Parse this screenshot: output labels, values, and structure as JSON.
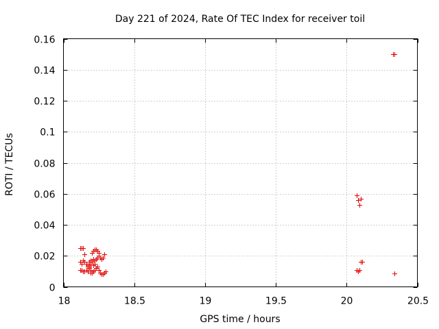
{
  "chart_data": {
    "type": "scatter",
    "title": "Day 221 of 2024, Rate Of TEC Index for receiver toil",
    "xlabel": "GPS time / hours",
    "ylabel": "ROTI / TECUs",
    "xlim": [
      18,
      20.5
    ],
    "ylim": [
      0,
      0.16
    ],
    "x_ticks": [
      18,
      18.5,
      19,
      19.5,
      20,
      20.5
    ],
    "x_tick_labels": [
      "18",
      "18.5",
      "19",
      "19.5",
      "20",
      "20.5"
    ],
    "y_ticks": [
      0,
      0.02,
      0.04,
      0.06,
      0.08,
      0.1,
      0.12,
      0.14,
      0.16
    ],
    "y_tick_labels": [
      "0",
      "0.02",
      "0.04",
      "0.06",
      "0.08",
      "0.1",
      "0.12",
      "0.14",
      "0.16"
    ],
    "grid": true,
    "marker": "+",
    "marker_color": "#e00000",
    "series": [
      {
        "name": "ROTI",
        "points": [
          [
            18.12,
            0.025
          ],
          [
            18.13,
            0.025
          ],
          [
            18.14,
            0.025
          ],
          [
            18.12,
            0.016
          ],
          [
            18.13,
            0.015
          ],
          [
            18.14,
            0.017
          ],
          [
            18.15,
            0.021
          ],
          [
            18.15,
            0.016
          ],
          [
            18.16,
            0.015
          ],
          [
            18.17,
            0.014
          ],
          [
            18.18,
            0.016
          ],
          [
            18.18,
            0.013
          ],
          [
            18.19,
            0.017
          ],
          [
            18.2,
            0.022
          ],
          [
            18.21,
            0.023
          ],
          [
            18.22,
            0.024
          ],
          [
            18.23,
            0.024
          ],
          [
            18.24,
            0.023
          ],
          [
            18.25,
            0.022
          ],
          [
            18.21,
            0.018
          ],
          [
            18.22,
            0.017
          ],
          [
            18.23,
            0.018
          ],
          [
            18.24,
            0.019
          ],
          [
            18.25,
            0.02
          ],
          [
            18.26,
            0.019
          ],
          [
            18.27,
            0.018
          ],
          [
            18.28,
            0.019
          ],
          [
            18.29,
            0.021
          ],
          [
            18.12,
            0.011
          ],
          [
            18.13,
            0.011
          ],
          [
            18.14,
            0.01
          ],
          [
            18.15,
            0.01
          ],
          [
            18.16,
            0.011
          ],
          [
            18.17,
            0.01
          ],
          [
            18.18,
            0.012
          ],
          [
            18.19,
            0.011
          ],
          [
            18.2,
            0.009
          ],
          [
            18.21,
            0.01
          ],
          [
            18.22,
            0.011
          ],
          [
            18.23,
            0.012
          ],
          [
            18.17,
            0.013
          ],
          [
            18.18,
            0.015
          ],
          [
            18.19,
            0.014
          ],
          [
            18.2,
            0.016
          ],
          [
            18.21,
            0.014
          ],
          [
            18.22,
            0.015
          ],
          [
            18.19,
            0.009
          ],
          [
            18.24,
            0.013
          ],
          [
            18.25,
            0.011
          ],
          [
            18.26,
            0.009
          ],
          [
            18.27,
            0.008
          ],
          [
            18.28,
            0.008
          ],
          [
            18.29,
            0.009
          ],
          [
            18.3,
            0.01
          ],
          [
            20.07,
            0.059
          ],
          [
            20.08,
            0.056
          ],
          [
            20.09,
            0.053
          ],
          [
            20.1,
            0.057
          ],
          [
            20.07,
            0.011
          ],
          [
            20.08,
            0.01
          ],
          [
            20.09,
            0.011
          ],
          [
            20.1,
            0.016
          ],
          [
            20.11,
            0.016
          ],
          [
            20.33,
            0.15
          ],
          [
            20.34,
            0.15
          ],
          [
            20.34,
            0.0085
          ]
        ]
      }
    ]
  }
}
